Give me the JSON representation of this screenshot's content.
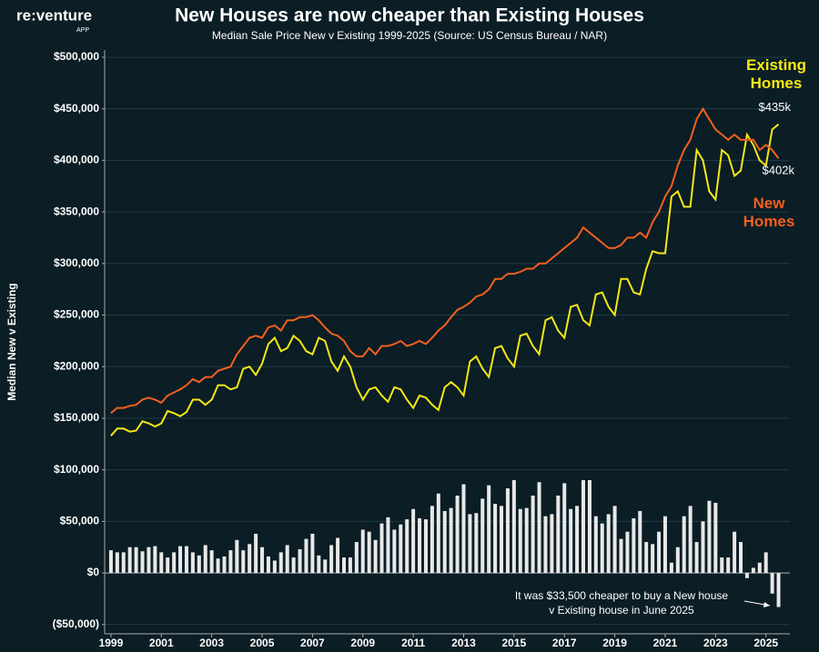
{
  "logo": {
    "name": "re:venture",
    "tag": "APP"
  },
  "chart_data": {
    "type": "line",
    "title": "New Houses are now cheaper than Existing Houses",
    "subtitle": "Median Sale Price New v Existing 1999-2025 (Source: US Census Bureau / NAR)",
    "ylabel": "Median New v Existing",
    "annotation": [
      "It was $33,500 cheaper to buy a New house",
      "v Existing house in June 2025"
    ],
    "x": [
      1999,
      1999.25,
      1999.5,
      1999.75,
      2000,
      2000.25,
      2000.5,
      2000.75,
      2001,
      2001.25,
      2001.5,
      2001.75,
      2002,
      2002.25,
      2002.5,
      2002.75,
      2003,
      2003.25,
      2003.5,
      2003.75,
      2004,
      2004.25,
      2004.5,
      2004.75,
      2005,
      2005.25,
      2005.5,
      2005.75,
      2006,
      2006.25,
      2006.5,
      2006.75,
      2007,
      2007.25,
      2007.5,
      2007.75,
      2008,
      2008.25,
      2008.5,
      2008.75,
      2009,
      2009.25,
      2009.5,
      2009.75,
      2010,
      2010.25,
      2010.5,
      2010.75,
      2011,
      2011.25,
      2011.5,
      2011.75,
      2012,
      2012.25,
      2012.5,
      2012.75,
      2013,
      2013.25,
      2013.5,
      2013.75,
      2014,
      2014.25,
      2014.5,
      2014.75,
      2015,
      2015.25,
      2015.5,
      2015.75,
      2016,
      2016.25,
      2016.5,
      2016.75,
      2017,
      2017.25,
      2017.5,
      2017.75,
      2018,
      2018.25,
      2018.5,
      2018.75,
      2019,
      2019.25,
      2019.5,
      2019.75,
      2020,
      2020.25,
      2020.5,
      2020.75,
      2021,
      2021.25,
      2021.5,
      2021.75,
      2022,
      2022.25,
      2022.5,
      2022.75,
      2023,
      2023.25,
      2023.5,
      2023.75,
      2024,
      2024.25,
      2024.5,
      2024.75,
      2025,
      2025.25,
      2025.5
    ],
    "series": [
      {
        "name": "Existing Homes",
        "color": "#f5e814",
        "end_label": "$435k",
        "values": [
          133000,
          140000,
          140000,
          137000,
          138000,
          147000,
          145000,
          142000,
          145000,
          157000,
          155000,
          152000,
          156000,
          168000,
          168000,
          163000,
          168000,
          182000,
          182000,
          178000,
          180000,
          198000,
          200000,
          192000,
          203000,
          222000,
          228000,
          215000,
          218000,
          230000,
          225000,
          215000,
          212000,
          228000,
          225000,
          205000,
          196000,
          210000,
          200000,
          180000,
          168000,
          178000,
          180000,
          172000,
          166000,
          180000,
          178000,
          168000,
          160000,
          172000,
          170000,
          163000,
          158000,
          180000,
          185000,
          180000,
          172000,
          205000,
          210000,
          198000,
          190000,
          218000,
          220000,
          208000,
          200000,
          230000,
          232000,
          220000,
          212000,
          245000,
          248000,
          235000,
          228000,
          258000,
          260000,
          245000,
          240000,
          270000,
          272000,
          258000,
          250000,
          285000,
          285000,
          272000,
          270000,
          295000,
          312000,
          310000,
          310000,
          365000,
          370000,
          355000,
          355000,
          410000,
          400000,
          370000,
          362000,
          410000,
          405000,
          385000,
          390000,
          425000,
          415000,
          400000,
          395000,
          430000,
          435000
        ]
      },
      {
        "name": "New Homes",
        "color": "#f2601e",
        "end_label": "$402k",
        "values": [
          155000,
          160000,
          160000,
          162000,
          163000,
          168000,
          170000,
          168000,
          165000,
          172000,
          175000,
          178000,
          182000,
          188000,
          185000,
          190000,
          190000,
          196000,
          198000,
          200000,
          212000,
          220000,
          228000,
          230000,
          228000,
          238000,
          240000,
          235000,
          245000,
          245000,
          248000,
          248000,
          250000,
          245000,
          238000,
          232000,
          230000,
          225000,
          215000,
          210000,
          210000,
          218000,
          212000,
          220000,
          220000,
          222000,
          225000,
          220000,
          222000,
          225000,
          222000,
          228000,
          235000,
          240000,
          248000,
          255000,
          258000,
          262000,
          268000,
          270000,
          275000,
          285000,
          285000,
          290000,
          290000,
          292000,
          295000,
          295000,
          300000,
          300000,
          305000,
          310000,
          315000,
          320000,
          325000,
          335000,
          330000,
          325000,
          320000,
          315000,
          315000,
          318000,
          325000,
          325000,
          330000,
          325000,
          340000,
          350000,
          365000,
          375000,
          395000,
          410000,
          420000,
          440000,
          450000,
          440000,
          430000,
          425000,
          420000,
          425000,
          420000,
          420000,
          420000,
          410000,
          415000,
          410000,
          402000
        ]
      },
      {
        "type": "bar",
        "color": "#e8e8e8",
        "values": [
          22000,
          20000,
          20000,
          25000,
          25000,
          21000,
          25000,
          26000,
          20000,
          15000,
          20000,
          26000,
          26000,
          20000,
          17000,
          27000,
          22000,
          14000,
          16000,
          22000,
          32000,
          22000,
          28000,
          38000,
          25000,
          16000,
          12000,
          20000,
          27000,
          15000,
          23000,
          33000,
          38000,
          17000,
          13000,
          27000,
          34000,
          15000,
          15000,
          30000,
          42000,
          40000,
          32000,
          48000,
          54000,
          42000,
          47000,
          52000,
          62000,
          53000,
          52000,
          65000,
          77000,
          60000,
          63000,
          75000,
          86000,
          57000,
          58000,
          72000,
          85000,
          67000,
          65000,
          82000,
          90000,
          62000,
          63000,
          75000,
          88000,
          55000,
          57000,
          75000,
          87000,
          62000,
          65000,
          90000,
          90000,
          55000,
          48000,
          57000,
          65000,
          33000,
          40000,
          53000,
          60000,
          30000,
          28000,
          40000,
          55000,
          10000,
          25000,
          55000,
          65000,
          30000,
          50000,
          70000,
          68000,
          15000,
          15000,
          40000,
          30000,
          -5000,
          5000,
          10000,
          20000,
          -20000,
          -33000
        ]
      }
    ],
    "xlim": [
      1998.75,
      2025.95
    ],
    "xticks": [
      1999,
      2001,
      2003,
      2005,
      2007,
      2009,
      2011,
      2013,
      2015,
      2017,
      2019,
      2021,
      2023,
      2025
    ],
    "ylim": [
      -59000,
      507000
    ],
    "yticks": [
      {
        "value": -50000,
        "label": "($50,000)"
      },
      {
        "value": 0,
        "label": "$0"
      },
      {
        "value": 50000,
        "label": "$50,000"
      },
      {
        "value": 100000,
        "label": "$100,000"
      },
      {
        "value": 150000,
        "label": "$150,000"
      },
      {
        "value": 200000,
        "label": "$200,000"
      },
      {
        "value": 250000,
        "label": "$250,000"
      },
      {
        "value": 300000,
        "label": "$300,000"
      },
      {
        "value": 350000,
        "label": "$350,000"
      },
      {
        "value": 400000,
        "label": "$400,000"
      },
      {
        "value": 450000,
        "label": "$450,000"
      },
      {
        "value": 500000,
        "label": "$500,000"
      }
    ],
    "grid": true
  }
}
